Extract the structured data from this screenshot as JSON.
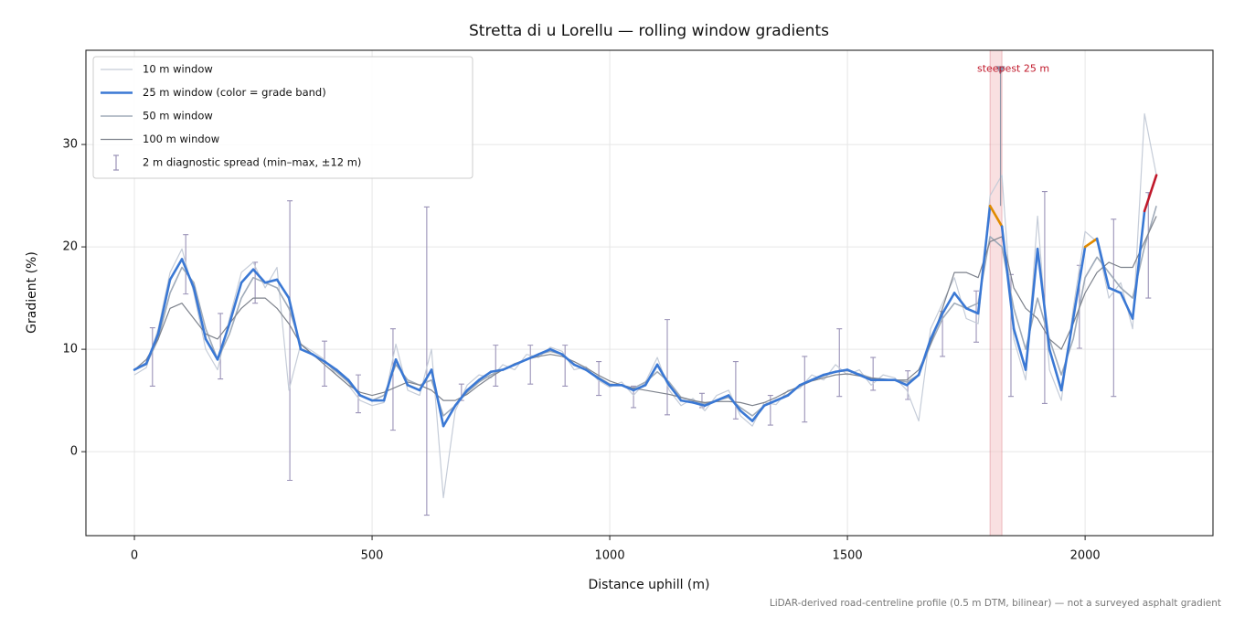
{
  "chart_data": {
    "type": "line",
    "title": "Stretta di u Lorellu — rolling window gradients",
    "xlabel": "Distance uphill (m)",
    "ylabel": "Gradient (%)",
    "footnote": "LiDAR-derived road-centreline profile (0.5 m DTM, bilinear) — not a surveyed asphalt gradient",
    "xlim": [
      -102,
      2269
    ],
    "ylim": [
      -8.2,
      39.2
    ],
    "xticks": [
      0,
      500,
      1000,
      1500,
      2000
    ],
    "yticks": [
      0,
      10,
      20,
      30
    ],
    "grid": true,
    "legend": "upper left",
    "x": [
      0,
      25,
      50,
      75,
      100,
      125,
      150,
      175,
      200,
      225,
      250,
      275,
      300,
      325,
      350,
      375,
      400,
      425,
      450,
      475,
      500,
      525,
      550,
      575,
      600,
      625,
      650,
      675,
      700,
      725,
      750,
      775,
      800,
      825,
      850,
      875,
      900,
      925,
      950,
      975,
      1000,
      1025,
      1050,
      1075,
      1100,
      1125,
      1150,
      1175,
      1200,
      1225,
      1250,
      1275,
      1300,
      1325,
      1350,
      1375,
      1400,
      1425,
      1450,
      1475,
      1500,
      1525,
      1550,
      1575,
      1600,
      1625,
      1650,
      1675,
      1700,
      1725,
      1750,
      1775,
      1800,
      1825,
      1850,
      1875,
      1900,
      1925,
      1950,
      1975,
      2000,
      2025,
      2050,
      2075,
      2100,
      2125,
      2150
    ],
    "grade_bands": {
      "thresholds": [
        20,
        25
      ],
      "colors": [
        "#3a78d4",
        "#e08a00",
        "#c0182a"
      ]
    },
    "series": [
      {
        "name": "10 m window",
        "color": "#c5ccd8",
        "width": 1.2,
        "values": [
          7.5,
          8.2,
          12,
          17.5,
          19.8,
          15.5,
          10,
          8,
          13,
          17.5,
          18.5,
          16,
          18,
          6,
          10.5,
          9.8,
          9,
          7.5,
          6.5,
          5,
          4.5,
          4.8,
          10.5,
          6,
          5.5,
          10,
          -4.5,
          4,
          6.5,
          7.5,
          7.2,
          8.5,
          8,
          9.5,
          9.2,
          10.2,
          9.8,
          8,
          8.3,
          7,
          6.3,
          6.8,
          5.5,
          6.8,
          9.2,
          6,
          4.5,
          5.2,
          4,
          5.5,
          6,
          3.5,
          2.5,
          4.8,
          4.6,
          6,
          6.2,
          7.5,
          7,
          8.5,
          7.5,
          8,
          6.5,
          7.5,
          7.2,
          6,
          3,
          12,
          14.5,
          17,
          13,
          12.5,
          25,
          27,
          11,
          7,
          23,
          8,
          5,
          14,
          21.5,
          20.5,
          15,
          16.5,
          12,
          33,
          27
        ]
      },
      {
        "name": "25 m window (color = grade band)",
        "color": "#3a78d4",
        "width": 2.6,
        "banded": true,
        "values": [
          8,
          8.6,
          11.5,
          16.8,
          18.8,
          16,
          11,
          9,
          12.5,
          16.5,
          17.8,
          16.5,
          16.8,
          15,
          10,
          9.5,
          8.8,
          8,
          7,
          5.5,
          5,
          5,
          9,
          6.5,
          6,
          8,
          2.5,
          4.5,
          6,
          7,
          7.8,
          8,
          8.5,
          9,
          9.5,
          10,
          9.5,
          8.5,
          8,
          7.2,
          6.5,
          6.5,
          6,
          6.5,
          8.5,
          6.5,
          5,
          4.8,
          4.5,
          5,
          5.5,
          4,
          3,
          4.5,
          5,
          5.5,
          6.5,
          7,
          7.5,
          7.8,
          8,
          7.5,
          7,
          7,
          7,
          6.5,
          7.5,
          11,
          13.5,
          15.5,
          14,
          13.5,
          24,
          22,
          12,
          8,
          19.8,
          10,
          6,
          13,
          20,
          20.8,
          16,
          15.5,
          13,
          23.5,
          27
        ]
      },
      {
        "name": "50 m window",
        "color": "#a0abb9",
        "width": 1.6,
        "values": [
          8,
          8.5,
          11,
          15.5,
          18,
          16.5,
          12,
          9,
          11.5,
          15,
          17,
          16.5,
          16,
          14,
          10.5,
          9.5,
          8.8,
          7.8,
          6.8,
          5.5,
          5,
          5.5,
          8.5,
          7,
          6.5,
          7,
          3.5,
          4.5,
          5.8,
          6.8,
          7.5,
          8,
          8.5,
          9,
          9.5,
          9.8,
          9.5,
          8.5,
          8,
          7.3,
          6.6,
          6.5,
          6.2,
          6.8,
          7.8,
          6.8,
          5.3,
          5,
          4.7,
          5,
          5.3,
          4.3,
          3.5,
          4.5,
          5,
          5.6,
          6.4,
          7,
          7.4,
          7.8,
          7.9,
          7.6,
          7.2,
          7,
          7,
          6.8,
          7.5,
          10.5,
          13,
          14.5,
          14,
          14.5,
          21,
          20,
          14,
          10,
          15,
          11,
          7.5,
          11,
          17,
          19,
          17.5,
          16,
          15,
          20,
          24
        ]
      },
      {
        "name": "100 m window",
        "color": "#7d828c",
        "width": 1.2,
        "values": [
          8,
          9,
          11,
          14,
          14.5,
          13,
          11.5,
          11,
          12.5,
          14,
          15,
          15,
          14,
          12.5,
          10.5,
          9.5,
          8.5,
          7.5,
          6.5,
          5.8,
          5.5,
          5.8,
          6.3,
          6.8,
          6.5,
          6,
          5,
          5,
          5.6,
          6.5,
          7.3,
          8,
          8.6,
          9,
          9.3,
          9.5,
          9.3,
          8.8,
          8.2,
          7.5,
          6.9,
          6.5,
          6.2,
          6,
          5.8,
          5.6,
          5.3,
          5,
          4.8,
          4.9,
          4.9,
          4.8,
          4.5,
          4.8,
          5.3,
          5.9,
          6.4,
          6.9,
          7.2,
          7.5,
          7.6,
          7.4,
          7.2,
          7.1,
          7,
          7,
          8,
          10.5,
          14,
          17.5,
          17.5,
          17,
          20.5,
          21,
          16,
          14,
          13,
          11,
          10,
          12.5,
          15.5,
          17.5,
          18.5,
          18,
          18,
          20.5,
          23
        ]
      }
    ],
    "spread": {
      "name": "2 m diagnostic spread (min–max, ±12 m)",
      "color": "#9b93b8",
      "x": [
        38,
        108,
        181,
        254,
        327,
        400,
        471,
        544,
        615,
        688,
        760,
        833,
        906,
        977,
        1050,
        1121,
        1194,
        1265,
        1338,
        1410,
        1483,
        1554,
        1627,
        1700,
        1771,
        1844,
        1915,
        1988,
        2060,
        2133
      ],
      "low": [
        6.4,
        15.4,
        7.1,
        14.5,
        -2.8,
        6.4,
        3.8,
        2.1,
        -6.2,
        5,
        6.4,
        6.6,
        6.4,
        5.5,
        4.3,
        3.6,
        4.3,
        3.2,
        2.6,
        2.9,
        5.4,
        6,
        5.1,
        9.3,
        10.7,
        5.4,
        4.7,
        10.1,
        5.4,
        15
      ],
      "high": [
        12.1,
        21.2,
        13.5,
        18.5,
        24.5,
        10.8,
        7.5,
        12,
        23.9,
        6.6,
        10.4,
        10.4,
        10.4,
        8.8,
        6.4,
        12.9,
        5.7,
        8.8,
        5.5,
        9.3,
        12,
        9.2,
        7.9,
        13.7,
        15.7,
        17.3,
        25.4,
        18.2,
        22.7,
        25.3
      ]
    },
    "steepest": {
      "label": "steepest 25 m",
      "x_range": [
        1800,
        1825
      ],
      "x": 1822,
      "y": 37.2,
      "color": "#c0182a",
      "fill": "#f4c7c9"
    }
  }
}
